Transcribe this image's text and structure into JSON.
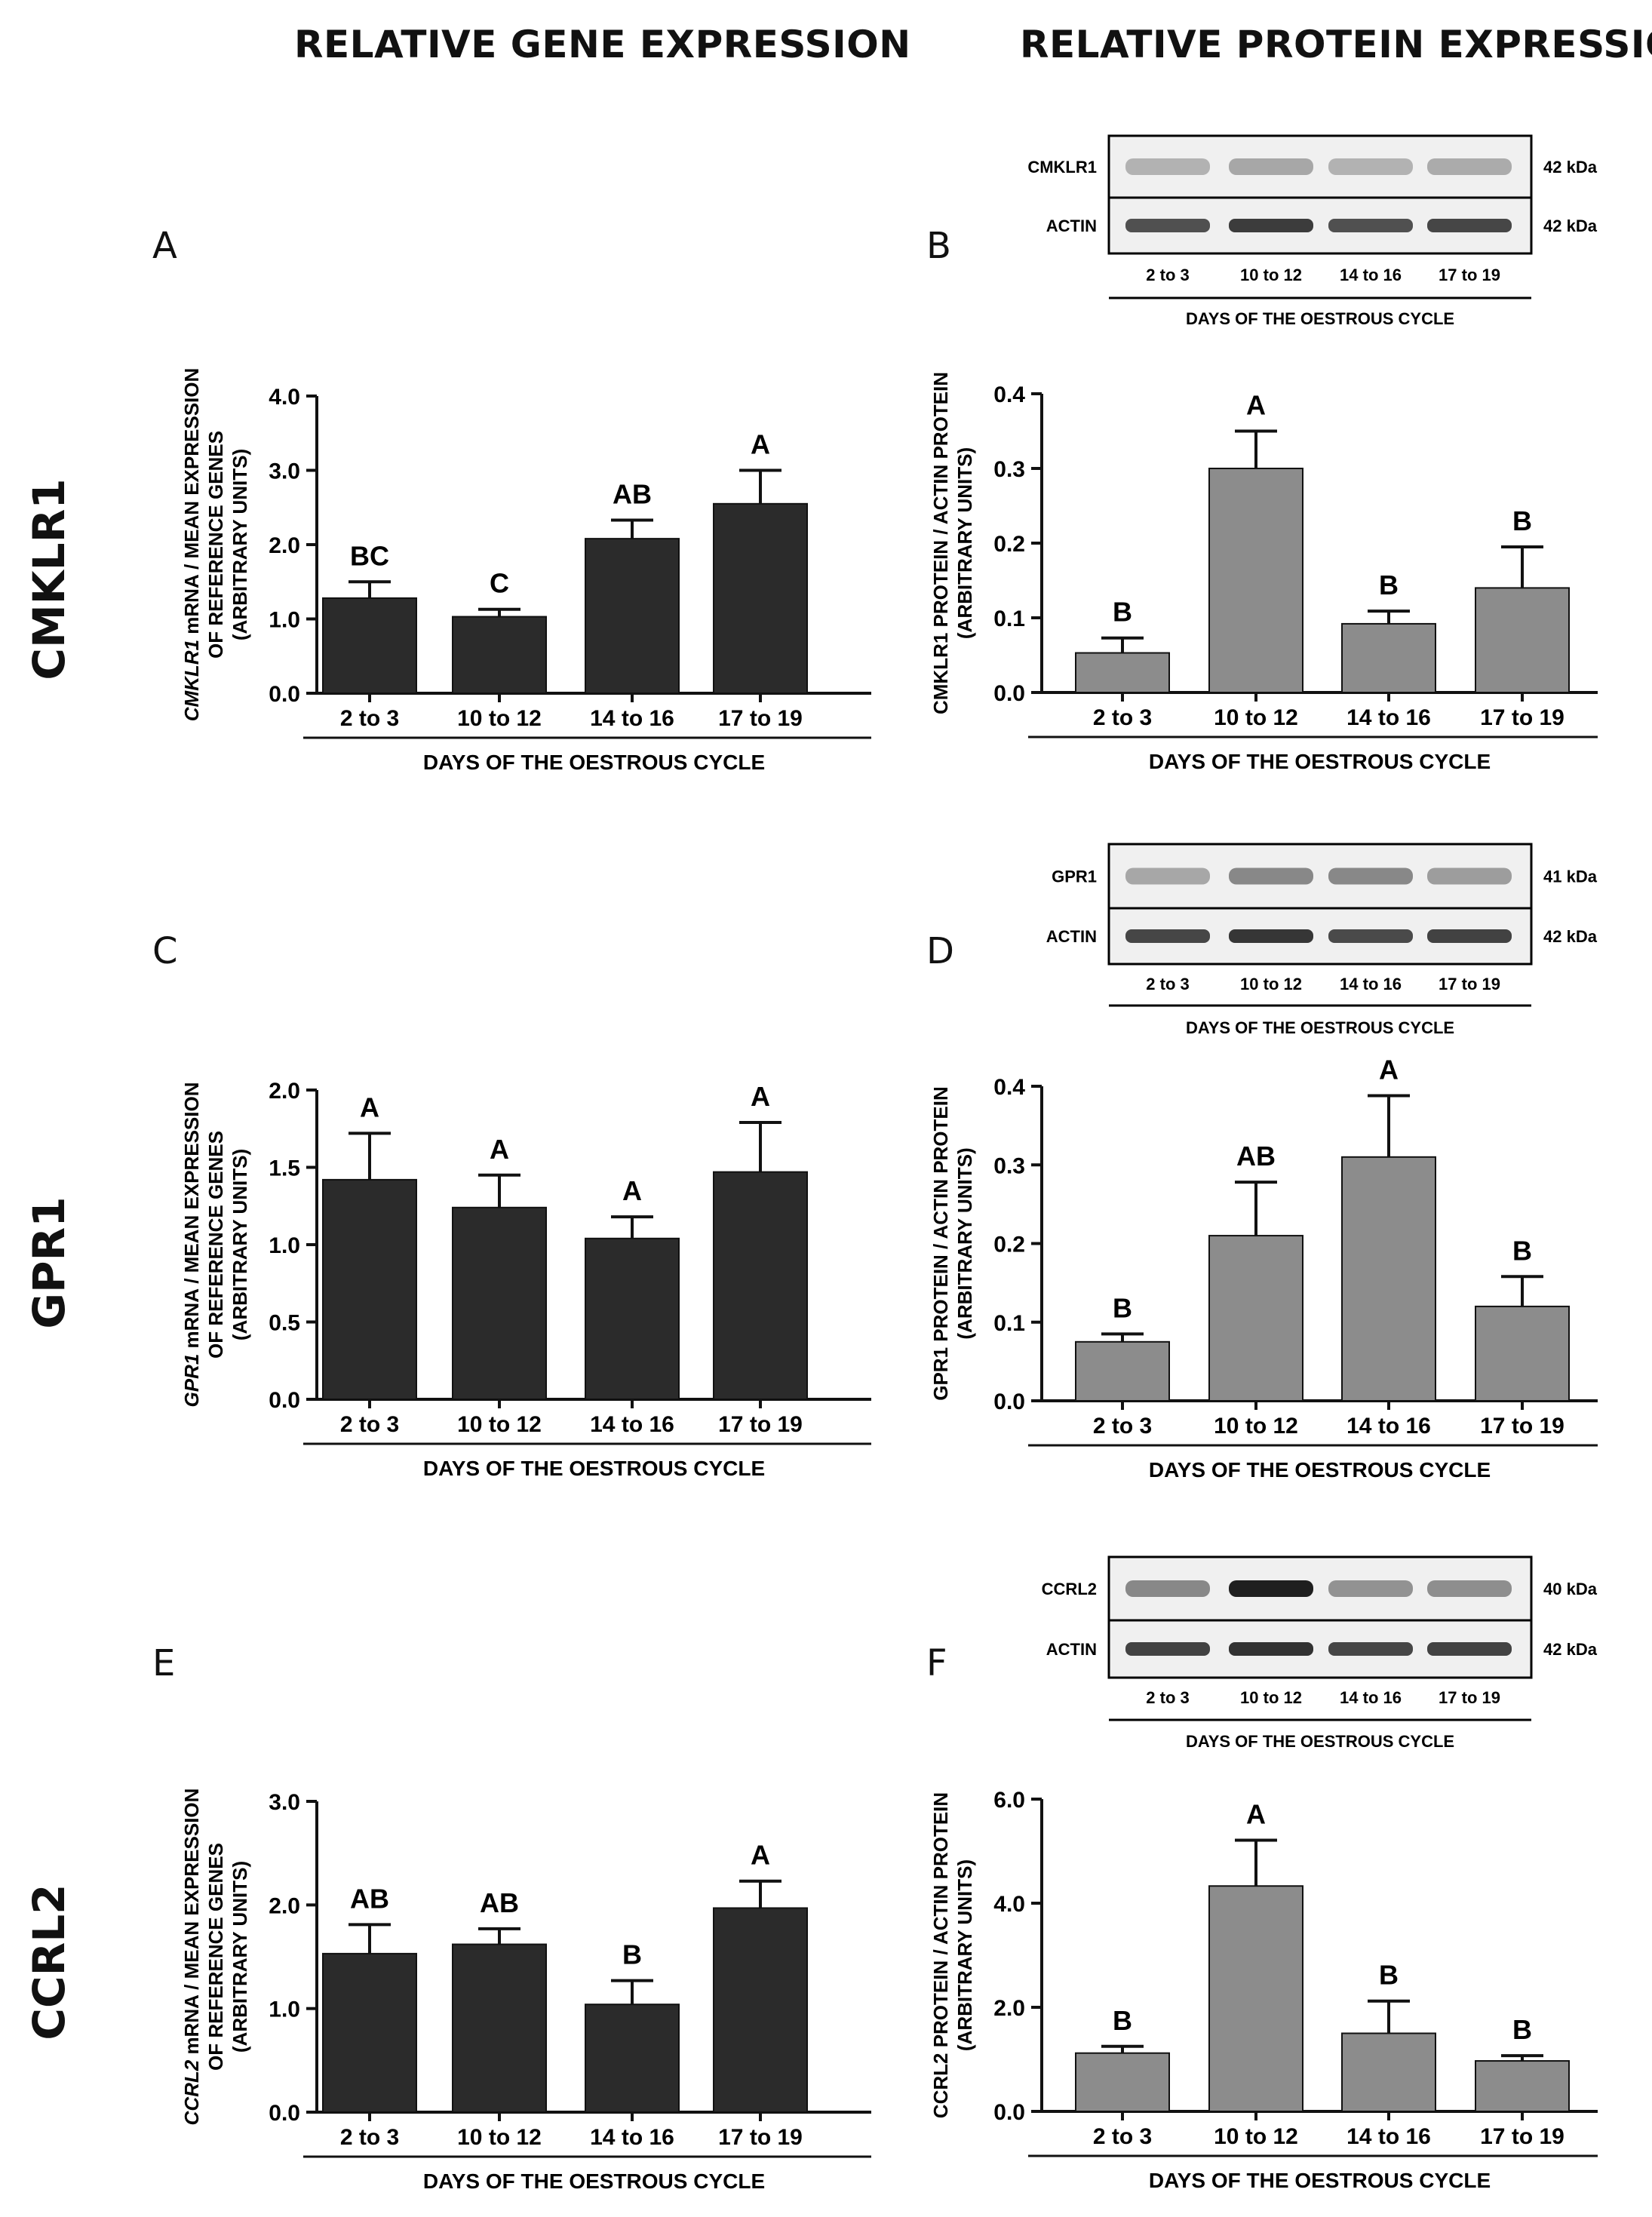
{
  "headers": {
    "gene": "RELATIVE GENE EXPRESSION",
    "protein": "RELATIVE PROTEIN EXPRESSION"
  },
  "rows": [
    "CMKLR1",
    "GPR1",
    "CCRL2"
  ],
  "colors": {
    "gene_bar": "#2b2b2b",
    "protein_bar": "#8c8c8c",
    "axis": "#111111"
  },
  "blots": [
    {
      "target": "CMKLR1",
      "target_kda": "42 kDa",
      "ref": "ACTIN",
      "ref_kda": "42 kDa",
      "lanes": [
        "2 to 3",
        "10 to 12",
        "14 to 16",
        "17 to 19"
      ],
      "xlabel": "DAYS OF THE OESTROUS CYCLE",
      "target_intensity": [
        0.25,
        0.3,
        0.25,
        0.28
      ],
      "ref_intensity": [
        0.75,
        0.85,
        0.75,
        0.8
      ]
    },
    {
      "target": "GPR1",
      "target_kda": "41 kDa",
      "ref": "ACTIN",
      "ref_kda": "42 kDa",
      "lanes": [
        "2 to 3",
        "10 to 12",
        "14 to 16",
        "17 to 19"
      ],
      "xlabel": "DAYS OF THE OESTROUS CYCLE",
      "target_intensity": [
        0.3,
        0.45,
        0.45,
        0.35
      ],
      "ref_intensity": [
        0.8,
        0.88,
        0.78,
        0.82
      ]
    },
    {
      "target": "CCRL2",
      "target_kda": "40 kDa",
      "ref": "ACTIN",
      "ref_kda": "42 kDa",
      "lanes": [
        "2 to 3",
        "10 to 12",
        "14 to 16",
        "17 to 19"
      ],
      "xlabel": "DAYS OF THE OESTROUS CYCLE",
      "target_intensity": [
        0.45,
        0.95,
        0.4,
        0.42
      ],
      "ref_intensity": [
        0.82,
        0.9,
        0.8,
        0.82
      ]
    }
  ],
  "chart_data": [
    {
      "panel": "A",
      "type": "bar",
      "categories": [
        "2 to 3",
        "10 to 12",
        "14 to 16",
        "17 to 19"
      ],
      "values": [
        1.28,
        1.03,
        2.08,
        2.55
      ],
      "errors": [
        0.22,
        0.1,
        0.25,
        0.45
      ],
      "letters": [
        "BC",
        "C",
        "AB",
        "A"
      ],
      "ylim": [
        0,
        4
      ],
      "yticks": [
        "0.0",
        "1.0",
        "2.0",
        "3.0",
        "4.0"
      ],
      "xlabel": "DAYS OF THE OESTROUS CYCLE",
      "ylabel_italic": "CMKLR1",
      "ylabel_line1": " mRNA / MEAN EXPRESSION",
      "ylabel_line2": "OF REFERENCE GENES",
      "ylabel_line3": "(ARBITRARY UNITS)",
      "color": "gene"
    },
    {
      "panel": "B",
      "type": "bar",
      "categories": [
        "2 to 3",
        "10 to 12",
        "14 to 16",
        "17 to 19"
      ],
      "values": [
        0.053,
        0.3,
        0.092,
        0.14
      ],
      "errors": [
        0.02,
        0.05,
        0.017,
        0.055
      ],
      "letters": [
        "B",
        "A",
        "B",
        "B"
      ],
      "ylim": [
        0,
        0.4
      ],
      "yticks": [
        "0.0",
        "0.1",
        "0.2",
        "0.3",
        "0.4"
      ],
      "xlabel": "DAYS OF THE OESTROUS CYCLE",
      "ylabel_italic": "",
      "ylabel_line1": "CMKLR1 PROTEIN / ACTIN PROTEIN",
      "ylabel_line2": "(ARBITRARY UNITS)",
      "ylabel_line3": "",
      "color": "protein"
    },
    {
      "panel": "C",
      "type": "bar",
      "categories": [
        "2 to 3",
        "10 to 12",
        "14 to 16",
        "17 to 19"
      ],
      "values": [
        1.42,
        1.24,
        1.04,
        1.47
      ],
      "errors": [
        0.3,
        0.21,
        0.14,
        0.32
      ],
      "letters": [
        "A",
        "A",
        "A",
        "A"
      ],
      "ylim": [
        0,
        2
      ],
      "yticks": [
        "0.0",
        "0.5",
        "1.0",
        "1.5",
        "2.0"
      ],
      "xlabel": "DAYS OF THE OESTROUS CYCLE",
      "ylabel_italic": "GPR1",
      "ylabel_line1": " mRNA / MEAN EXPRESSION",
      "ylabel_line2": "OF REFERENCE GENES",
      "ylabel_line3": "(ARBITRARY UNITS)",
      "color": "gene"
    },
    {
      "panel": "D",
      "type": "bar",
      "categories": [
        "2 to 3",
        "10 to 12",
        "14 to 16",
        "17 to 19"
      ],
      "values": [
        0.075,
        0.21,
        0.31,
        0.12
      ],
      "errors": [
        0.01,
        0.068,
        0.078,
        0.038
      ],
      "letters": [
        "B",
        "AB",
        "A",
        "B"
      ],
      "ylim": [
        0,
        0.4
      ],
      "yticks": [
        "0.0",
        "0.1",
        "0.2",
        "0.3",
        "0.4"
      ],
      "xlabel": "DAYS OF THE OESTROUS CYCLE",
      "ylabel_italic": "",
      "ylabel_line1": "GPR1 PROTEIN / ACTIN PROTEIN",
      "ylabel_line2": "(ARBITRARY UNITS)",
      "ylabel_line3": "",
      "color": "protein"
    },
    {
      "panel": "E",
      "type": "bar",
      "categories": [
        "2 to 3",
        "10 to 12",
        "14 to 16",
        "17 to 19"
      ],
      "values": [
        1.53,
        1.62,
        1.04,
        1.97
      ],
      "errors": [
        0.28,
        0.15,
        0.23,
        0.26
      ],
      "letters": [
        "AB",
        "AB",
        "B",
        "A"
      ],
      "ylim": [
        0,
        3
      ],
      "yticks": [
        "0.0",
        "1.0",
        "2.0",
        "3.0"
      ],
      "xlabel": "DAYS OF THE OESTROUS CYCLE",
      "ylabel_italic": "CCRL2",
      "ylabel_line1": " mRNA / MEAN EXPRESSION",
      "ylabel_line2": "OF REFERENCE GENES",
      "ylabel_line3": "(ARBITRARY UNITS)",
      "color": "gene"
    },
    {
      "panel": "F",
      "type": "bar",
      "categories": [
        "2 to 3",
        "10 to 12",
        "14 to 16",
        "17 to 19"
      ],
      "values": [
        1.12,
        4.33,
        1.5,
        0.97
      ],
      "errors": [
        0.13,
        0.88,
        0.62,
        0.1
      ],
      "letters": [
        "B",
        "A",
        "B",
        "B"
      ],
      "ylim": [
        0,
        6
      ],
      "yticks": [
        "0.0",
        "2.0",
        "4.0",
        "6.0"
      ],
      "xlabel": "DAYS OF THE OESTROUS CYCLE",
      "ylabel_italic": "",
      "ylabel_line1": "CCRL2 PROTEIN / ACTIN PROTEIN",
      "ylabel_line2": "(ARBITRARY UNITS)",
      "ylabel_line3": "",
      "color": "protein"
    }
  ]
}
